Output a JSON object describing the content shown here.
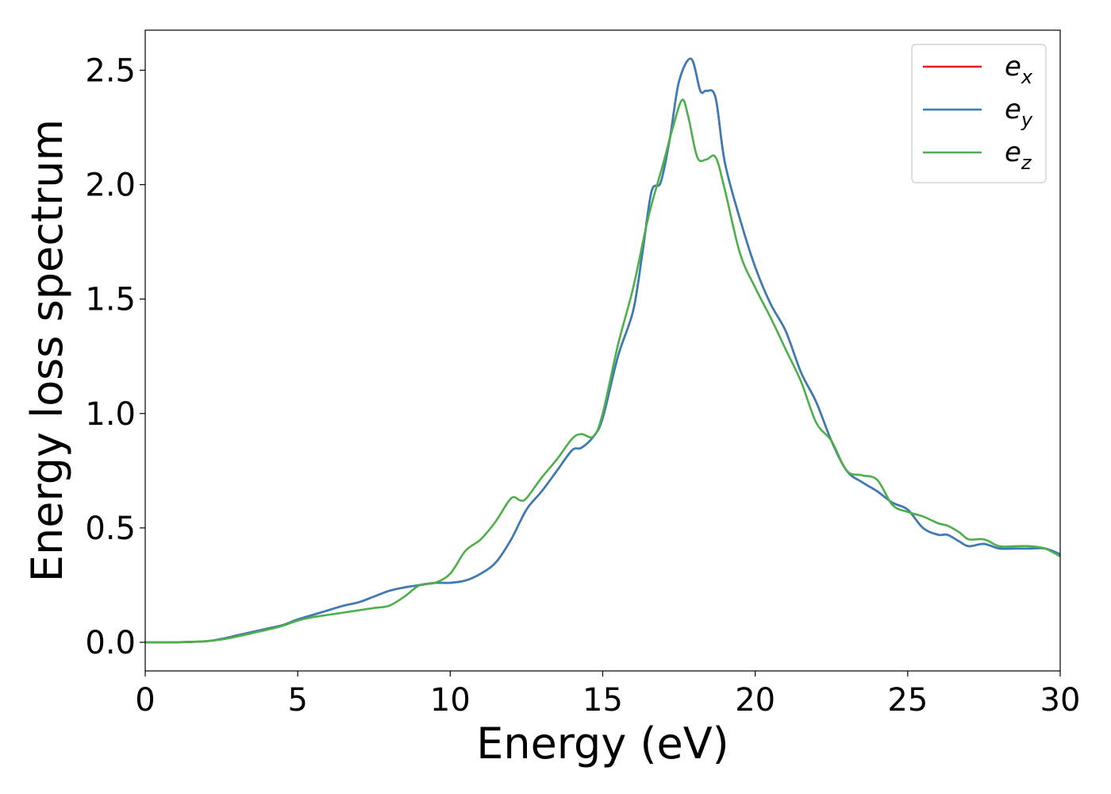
{
  "chart_data": {
    "type": "line",
    "xlabel": "Energy (eV)",
    "ylabel": "Energy loss spectrum",
    "xlim": [
      0,
      30
    ],
    "ylim": [
      -0.125,
      2.675
    ],
    "xticks": [
      0,
      5,
      10,
      15,
      20,
      25,
      30
    ],
    "xtick_labels": [
      "0",
      "5",
      "10",
      "15",
      "20",
      "25",
      "30"
    ],
    "yticks": [
      0.0,
      0.5,
      1.0,
      1.5,
      2.0,
      2.5
    ],
    "ytick_labels": [
      "0.0",
      "0.5",
      "1.0",
      "1.5",
      "2.0",
      "2.5"
    ],
    "grid": false,
    "legend_position": "top-right",
    "series": [
      {
        "name": "e_x",
        "legend_base": "e",
        "legend_sub": "x",
        "color": "#e41a1c",
        "x": [
          0,
          1,
          2,
          2.5,
          3,
          3.5,
          4,
          4.5,
          5,
          5.5,
          6,
          6.5,
          7,
          7.5,
          8,
          8.5,
          9,
          9.5,
          10,
          10.5,
          11,
          11.5,
          12,
          12.5,
          13,
          13.5,
          14,
          14.3,
          14.7,
          15,
          15.5,
          16,
          16.3,
          16.6,
          16.9,
          17.2,
          17.5,
          17.9,
          18.2,
          18.4,
          18.7,
          19,
          19.5,
          20,
          20.5,
          21,
          21.5,
          22,
          22.5,
          23,
          23.5,
          24,
          24.5,
          25,
          25.5,
          26,
          26.3,
          26.7,
          27,
          27.5,
          28,
          28.5,
          29,
          29.5,
          30
        ],
        "y": [
          0.0,
          0.0,
          0.005,
          0.015,
          0.03,
          0.045,
          0.06,
          0.075,
          0.1,
          0.12,
          0.14,
          0.16,
          0.175,
          0.2,
          0.225,
          0.24,
          0.25,
          0.26,
          0.26,
          0.27,
          0.3,
          0.35,
          0.45,
          0.58,
          0.66,
          0.75,
          0.84,
          0.85,
          0.9,
          0.98,
          1.25,
          1.45,
          1.7,
          1.97,
          2.01,
          2.2,
          2.45,
          2.55,
          2.41,
          2.41,
          2.38,
          2.1,
          1.85,
          1.64,
          1.48,
          1.36,
          1.18,
          1.05,
          0.88,
          0.75,
          0.7,
          0.66,
          0.61,
          0.58,
          0.5,
          0.47,
          0.47,
          0.44,
          0.42,
          0.43,
          0.41,
          0.41,
          0.41,
          0.41,
          0.385
        ]
      },
      {
        "name": "e_y",
        "legend_base": "e",
        "legend_sub": "y",
        "color": "#377eb8",
        "x": [
          0,
          1,
          2,
          2.5,
          3,
          3.5,
          4,
          4.5,
          5,
          5.5,
          6,
          6.5,
          7,
          7.5,
          8,
          8.5,
          9,
          9.5,
          10,
          10.5,
          11,
          11.5,
          12,
          12.5,
          13,
          13.5,
          14,
          14.3,
          14.7,
          15,
          15.5,
          16,
          16.3,
          16.6,
          16.9,
          17.2,
          17.5,
          17.9,
          18.2,
          18.4,
          18.7,
          19,
          19.5,
          20,
          20.5,
          21,
          21.5,
          22,
          22.5,
          23,
          23.5,
          24,
          24.5,
          25,
          25.5,
          26,
          26.3,
          26.7,
          27,
          27.5,
          28,
          28.5,
          29,
          29.5,
          30
        ],
        "y": [
          0.0,
          0.0,
          0.005,
          0.015,
          0.03,
          0.045,
          0.06,
          0.075,
          0.1,
          0.12,
          0.14,
          0.16,
          0.175,
          0.2,
          0.225,
          0.24,
          0.25,
          0.26,
          0.26,
          0.27,
          0.3,
          0.35,
          0.45,
          0.58,
          0.66,
          0.75,
          0.84,
          0.85,
          0.9,
          0.98,
          1.25,
          1.45,
          1.7,
          1.97,
          2.01,
          2.2,
          2.45,
          2.55,
          2.41,
          2.41,
          2.38,
          2.1,
          1.85,
          1.64,
          1.48,
          1.36,
          1.18,
          1.05,
          0.88,
          0.75,
          0.7,
          0.66,
          0.61,
          0.58,
          0.5,
          0.47,
          0.47,
          0.44,
          0.42,
          0.43,
          0.41,
          0.41,
          0.41,
          0.41,
          0.385
        ]
      },
      {
        "name": "e_z",
        "legend_base": "e",
        "legend_sub": "z",
        "color": "#4daf4a",
        "x": [
          0,
          1,
          2,
          2.5,
          3,
          3.5,
          4,
          4.5,
          5,
          5.5,
          6,
          6.5,
          7,
          7.5,
          8,
          8.5,
          9,
          9.5,
          10,
          10.5,
          11,
          11.5,
          12,
          12.3,
          12.5,
          13,
          13.5,
          14,
          14.3,
          14.7,
          15,
          15.5,
          16,
          16.5,
          17,
          17.3,
          17.6,
          17.8,
          18.1,
          18.4,
          18.7,
          19,
          19.5,
          20,
          20.5,
          21,
          21.5,
          22,
          22.5,
          23,
          23.5,
          24,
          24.5,
          25,
          25.5,
          26,
          26.3,
          26.7,
          27,
          27.5,
          28,
          28.5,
          29,
          29.5,
          30
        ],
        "y": [
          0.0,
          0.0,
          0.005,
          0.012,
          0.025,
          0.04,
          0.055,
          0.072,
          0.095,
          0.11,
          0.12,
          0.13,
          0.14,
          0.15,
          0.16,
          0.2,
          0.25,
          0.26,
          0.3,
          0.4,
          0.45,
          0.53,
          0.63,
          0.62,
          0.63,
          0.72,
          0.8,
          0.89,
          0.91,
          0.9,
          1.0,
          1.3,
          1.55,
          1.86,
          2.1,
          2.25,
          2.37,
          2.3,
          2.12,
          2.11,
          2.12,
          1.98,
          1.7,
          1.55,
          1.42,
          1.28,
          1.14,
          0.96,
          0.88,
          0.75,
          0.73,
          0.71,
          0.6,
          0.57,
          0.55,
          0.52,
          0.51,
          0.48,
          0.45,
          0.45,
          0.42,
          0.42,
          0.42,
          0.41,
          0.375
        ]
      }
    ]
  }
}
